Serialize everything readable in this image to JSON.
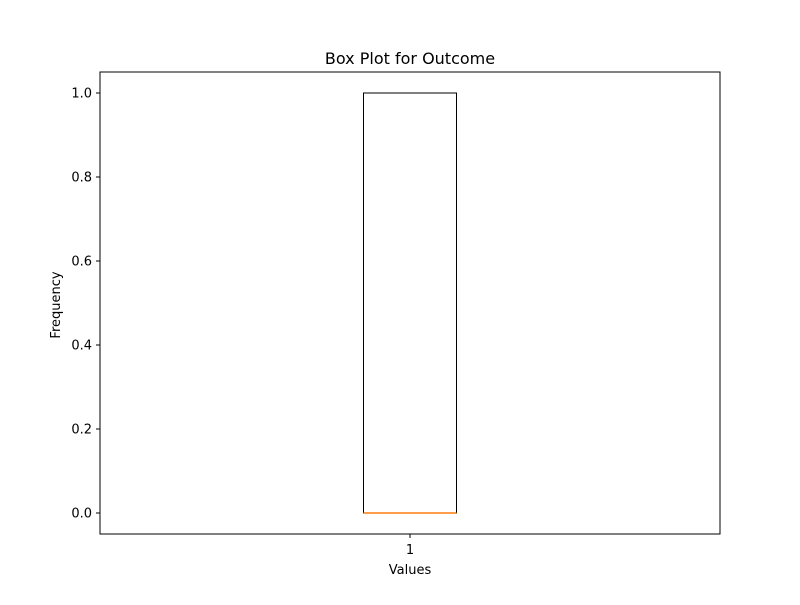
{
  "chart_data": {
    "type": "box",
    "title": "Box Plot for Outcome",
    "xlabel": "Values",
    "ylabel": "Frequency",
    "categories": [
      "1"
    ],
    "ylim": [
      -0.05,
      1.05
    ],
    "yticks": [
      0.0,
      0.2,
      0.4,
      0.6,
      0.8,
      1.0
    ],
    "ytick_labels": [
      "0.0",
      "0.2",
      "0.4",
      "0.6",
      "0.8",
      "1.0"
    ],
    "boxes": [
      {
        "label": "1",
        "whisker_low": 0,
        "q1": 0,
        "median": 0,
        "q3": 1,
        "whisker_high": 1
      }
    ],
    "grid": false,
    "colors": {
      "box": "#000000",
      "median": "#ff7f0e",
      "axes": "#000000"
    }
  }
}
